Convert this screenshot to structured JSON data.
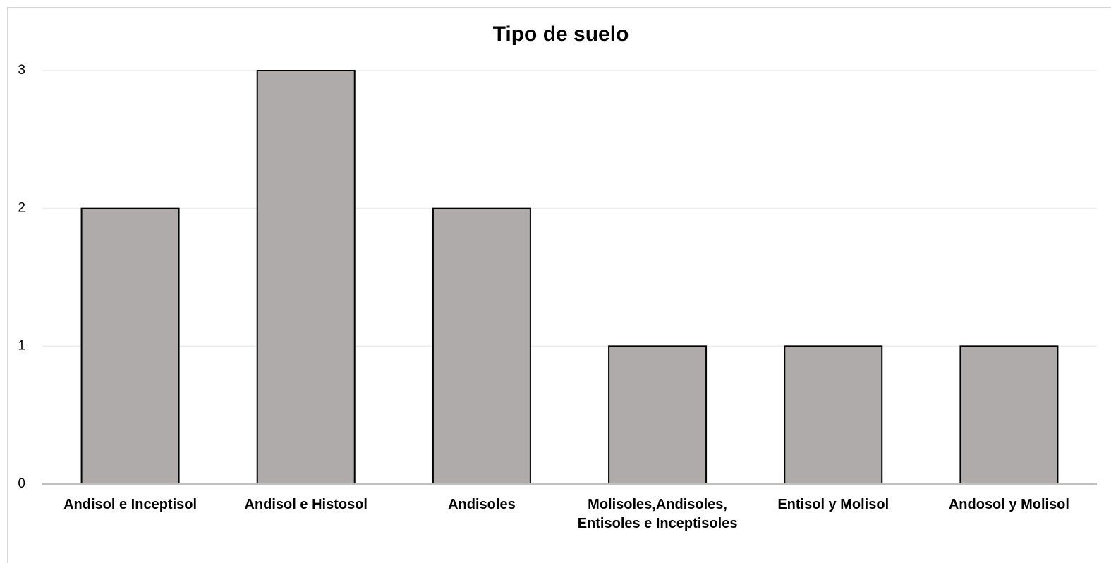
{
  "chart_data": {
    "type": "bar",
    "title": "Tipo de suelo",
    "categories": [
      "Andisol e Inceptisol",
      "Andisol e Histosol",
      "Andisoles",
      "Molisoles,Andisoles, Entisoles e Inceptisoles",
      "Entisol y Molisol",
      "Andosol y Molisol"
    ],
    "values": [
      2,
      3,
      2,
      1,
      1,
      1
    ],
    "color": "#afabab",
    "ylim": [
      0,
      3
    ],
    "yticks": [
      0,
      1,
      2,
      3
    ],
    "grid": true
  }
}
